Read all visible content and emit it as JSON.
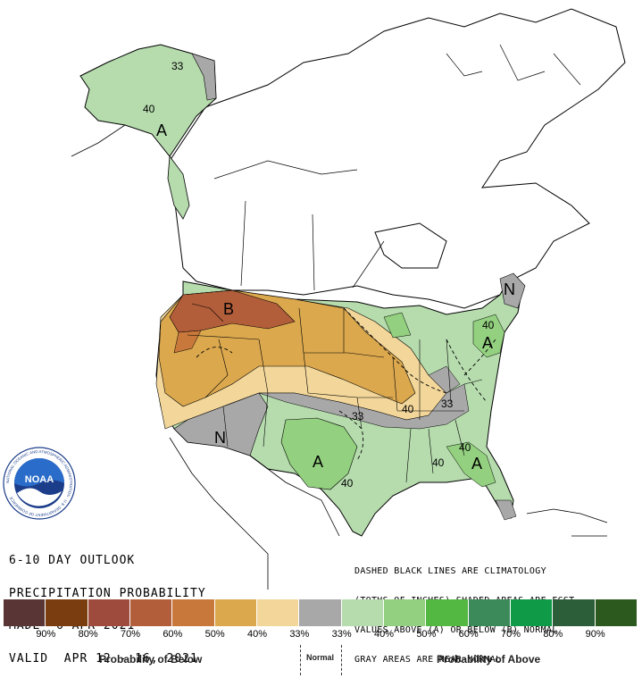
{
  "title_lines": [
    "6-10 DAY OUTLOOK",
    "PRECIPITATION PROBABILITY",
    "MADE  6 APR 2021",
    "VALID  APR 12 - 16, 2021"
  ],
  "notes_lines": [
    "DASHED BLACK LINES ARE CLIMATOLOGY",
    "(TOTHS OF INCHES) SHADED AREAS ARE FCST",
    "VALUES ABOVE (A) OR BELOW (B) NORMAL",
    "GRAY AREAS ARE NEAR-NORMAL"
  ],
  "logo": {
    "name": "NOAA",
    "ring_text": "NATIONAL OCEANIC AND ATMOSPHERIC ADMINISTRATION · U.S. DEPARTMENT OF COMMERCE"
  },
  "map_labels": {
    "above": "A",
    "below": "B",
    "normal": "N",
    "contour_33": "33",
    "contour_40": "40"
  },
  "legend": {
    "colors": [
      "#5a3535",
      "#7a3d10",
      "#9e4a3c",
      "#b35e3a",
      "#c8783a",
      "#dba84e",
      "#f2d69a",
      "#a8a8a8",
      "#b6dcae",
      "#93d07f",
      "#52b842",
      "#3c8a5a",
      "#0e9a47",
      "#2c5e3a",
      "#2c5a1e"
    ],
    "ticks": [
      "90%",
      "80%",
      "70%",
      "60%",
      "50%",
      "40%",
      "33%",
      "33%",
      "40%",
      "50%",
      "60%",
      "70%",
      "80%",
      "90%"
    ],
    "below_label": "Probability of Below",
    "normal_label": "Normal",
    "above_label": "Probability of Above"
  },
  "category_colors": {
    "below_50": "#c8783a",
    "below_40": "#dba84e",
    "below_33": "#f2d69a",
    "near_normal": "#a8a8a8",
    "above_33": "#b6dcae",
    "above_40": "#93d07f"
  }
}
